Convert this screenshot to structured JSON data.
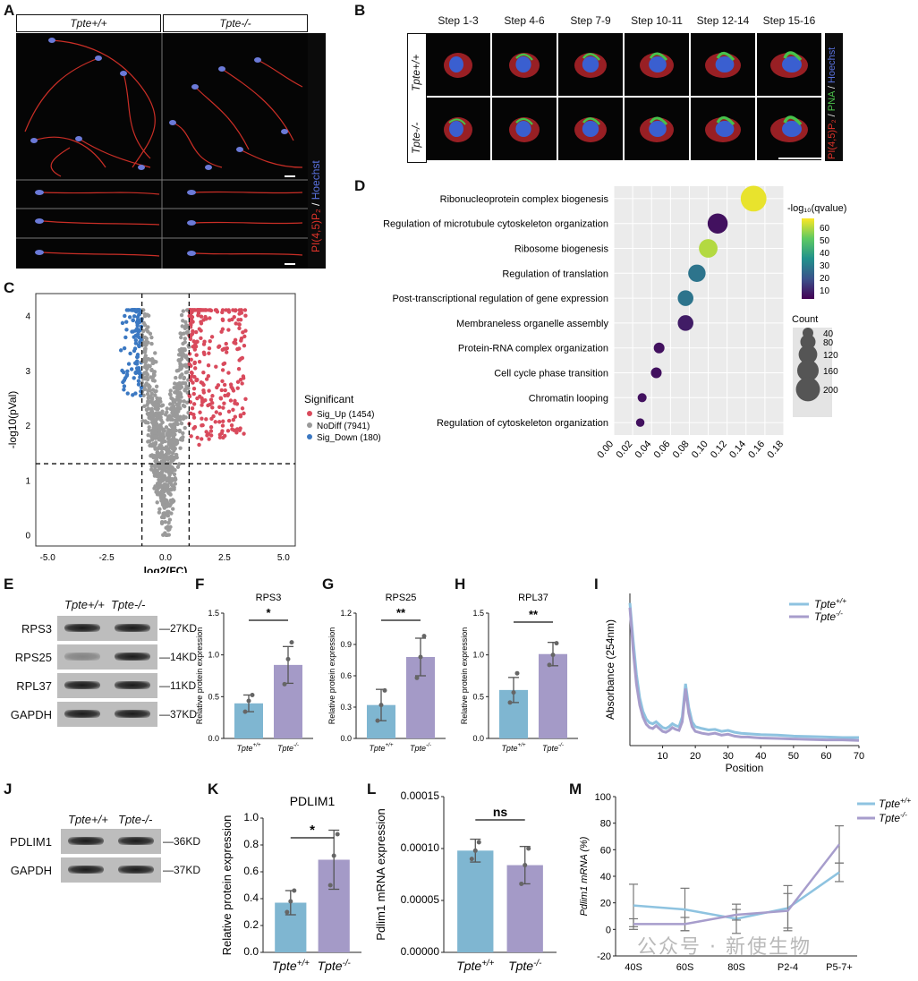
{
  "panels": {
    "A": "A",
    "B": "B",
    "C": "C",
    "D": "D",
    "E": "E",
    "F": "F",
    "G": "G",
    "H": "H",
    "I": "I",
    "J": "J",
    "K": "K",
    "L": "L",
    "M": "M"
  },
  "genotypes": {
    "wt": "Tpte+/+",
    "ko": "Tpte-/-"
  },
  "panelA": {
    "stain_red": "PI(4,5)P₂",
    "stain_sep": " / ",
    "stain_blue": "Hoechst"
  },
  "panelB": {
    "steps": [
      "Step 1-3",
      "Step 4-6",
      "Step 7-9",
      "Step 10-11",
      "Step 12-14",
      "Step 15-16"
    ],
    "stain_red": "PI(4,5)P₂",
    "stain_sep1": " / ",
    "stain_green": "PNA",
    "stain_sep2": " / ",
    "stain_blue": "Hoechst"
  },
  "colors": {
    "up": "#d94a5c",
    "nodiff": "#9a9a9a",
    "down": "#3b78c2",
    "wt_bar": "#7fb6d1",
    "ko_bar": "#a49ac7",
    "wt_line": "#8ec3e0",
    "ko_line": "#a79dcc"
  },
  "panelE": {
    "proteins": [
      "RPS3",
      "RPS25",
      "RPL37",
      "GAPDH"
    ],
    "sizes": [
      "27KD",
      "14KD",
      "11KD",
      "37KD"
    ]
  },
  "panelJ": {
    "proteins": [
      "PDLIM1",
      "GAPDH"
    ],
    "sizes": [
      "36KD",
      "37KD"
    ]
  },
  "watermark": "公众号 · 新使生物",
  "chart_data": [
    {
      "id": "C",
      "type": "scatter",
      "xlabel": "log2(FC)",
      "ylabel": "-log10(pVal)",
      "xlim": [
        -5.5,
        5.5
      ],
      "ylim": [
        -0.2,
        4.4
      ],
      "xticks": [
        "-5.0",
        "-2.5",
        "0.0",
        "2.5",
        "5.0"
      ],
      "yticks": [
        "0",
        "1",
        "2",
        "3",
        "4"
      ],
      "thresholds": {
        "x": [
          -1,
          1
        ],
        "y": 1.3
      },
      "legend_title": "Significant",
      "legend": [
        "Sig_Up (1454)",
        "NoDiff (7941)",
        "Sig_Down (180)"
      ]
    },
    {
      "id": "D",
      "type": "scatter",
      "title": "",
      "xlim": [
        0,
        0.18
      ],
      "xticks": [
        "0.00",
        "0.02",
        "0.04",
        "0.06",
        "0.08",
        "0.10",
        "0.12",
        "0.14",
        "0.16",
        "0.18"
      ],
      "terms": [
        "Ribonucleoprotein complex biogenesis",
        "Regulation of microtubule cytoskeleton organization",
        "Ribosome biogenesis",
        "Regulation of translation",
        "Post-transcriptional regulation of gene expression",
        "Membraneless organelle assembly",
        "Protein-RNA complex organization",
        "Cell cycle phase transition",
        "Chromatin looping",
        "Regulation of cytoskeleton organization"
      ],
      "x": [
        0.148,
        0.11,
        0.1,
        0.088,
        0.076,
        0.076,
        0.048,
        0.045,
        0.03,
        0.028
      ],
      "qvalue": [
        63,
        8,
        58,
        28,
        28,
        10,
        8,
        8,
        8,
        8
      ],
      "count": [
        230,
        140,
        120,
        105,
        85,
        85,
        40,
        40,
        28,
        25
      ],
      "colorbar_title": "-log₁₀(qvalue)",
      "colorbar_ticks": [
        "60",
        "50",
        "40",
        "30",
        "20",
        "10"
      ],
      "size_title": "Count",
      "size_ticks": [
        "40",
        "80",
        "120",
        "160",
        "200"
      ]
    },
    {
      "id": "F",
      "type": "bar",
      "title": "RPS3",
      "ylabel": "Relative protein expression",
      "categories": [
        "Tpte+/+",
        "Tpte-/-"
      ],
      "values": [
        0.42,
        0.88
      ],
      "errors": [
        0.1,
        0.22
      ],
      "points": [
        [
          0.32,
          0.45,
          0.52
        ],
        [
          0.65,
          0.95,
          1.15
        ]
      ],
      "ylim": [
        0,
        1.5
      ],
      "yticks": [
        "0.0",
        "0.5",
        "1.0",
        "1.5"
      ],
      "sig": "*"
    },
    {
      "id": "G",
      "type": "bar",
      "title": "RPS25",
      "ylabel": "Relative protein expression",
      "categories": [
        "Tpte+/+",
        "Tpte-/-"
      ],
      "values": [
        0.32,
        0.78
      ],
      "errors": [
        0.15,
        0.18
      ],
      "points": [
        [
          0.17,
          0.32,
          0.46
        ],
        [
          0.58,
          0.78,
          0.98
        ]
      ],
      "ylim": [
        0,
        1.2
      ],
      "yticks": [
        "0.0",
        "0.3",
        "0.6",
        "0.9",
        "1.2"
      ],
      "sig": "**"
    },
    {
      "id": "H",
      "type": "bar",
      "title": "RPL37",
      "ylabel": "Relative protein expression",
      "categories": [
        "Tpte+/+",
        "Tpte-/-"
      ],
      "values": [
        0.58,
        1.01
      ],
      "errors": [
        0.15,
        0.14
      ],
      "points": [
        [
          0.43,
          0.55,
          0.78
        ],
        [
          0.88,
          1.0,
          1.14
        ]
      ],
      "ylim": [
        0,
        1.5
      ],
      "yticks": [
        "0.0",
        "0.5",
        "1.0",
        "1.5"
      ],
      "sig": "**"
    },
    {
      "id": "I",
      "type": "line",
      "ylabel": "Absorbance (254nm)",
      "xlabel": "Position",
      "xlim": [
        0,
        70
      ],
      "xticks": [
        "10",
        "20",
        "30",
        "40",
        "50",
        "60",
        "70"
      ],
      "x": [
        0,
        1,
        2,
        3,
        4,
        5,
        6,
        7,
        8,
        9,
        10,
        11,
        12,
        13,
        14,
        15,
        16,
        17,
        18,
        19,
        20,
        22,
        24,
        26,
        28,
        30,
        32,
        34,
        36,
        38,
        40,
        45,
        50,
        55,
        60,
        65,
        70
      ],
      "series": [
        {
          "name": "Tpte+/+",
          "values": [
            3.0,
            2.2,
            1.5,
            1.0,
            0.72,
            0.56,
            0.48,
            0.46,
            0.5,
            0.44,
            0.38,
            0.36,
            0.4,
            0.46,
            0.42,
            0.4,
            0.6,
            1.3,
            0.8,
            0.5,
            0.4,
            0.36,
            0.33,
            0.34,
            0.3,
            0.32,
            0.28,
            0.26,
            0.25,
            0.24,
            0.23,
            0.22,
            0.2,
            0.19,
            0.18,
            0.17,
            0.17
          ]
        },
        {
          "name": "Tpte-/-",
          "values": [
            2.9,
            2.0,
            1.3,
            0.85,
            0.6,
            0.45,
            0.38,
            0.36,
            0.42,
            0.36,
            0.3,
            0.28,
            0.32,
            0.38,
            0.34,
            0.32,
            0.5,
            1.2,
            0.68,
            0.4,
            0.3,
            0.26,
            0.24,
            0.26,
            0.22,
            0.24,
            0.2,
            0.18,
            0.18,
            0.17,
            0.16,
            0.15,
            0.14,
            0.13,
            0.12,
            0.12,
            0.11
          ]
        }
      ]
    },
    {
      "id": "K",
      "type": "bar",
      "title": "PDLIM1",
      "ylabel": "Relative protein expression",
      "categories": [
        "Tpte+/+",
        "Tpte-/-"
      ],
      "values": [
        0.37,
        0.69
      ],
      "errors": [
        0.09,
        0.22
      ],
      "points": [
        [
          0.3,
          0.38,
          0.46
        ],
        [
          0.5,
          0.72,
          0.88
        ]
      ],
      "ylim": [
        0,
        1.0
      ],
      "yticks": [
        "0.0",
        "0.2",
        "0.4",
        "0.6",
        "0.8",
        "1.0"
      ],
      "sig": "*"
    },
    {
      "id": "L",
      "type": "bar",
      "title": "",
      "ylabel": "Pdlim1 mRNA expression",
      "categories": [
        "Tpte+/+",
        "Tpte-/-"
      ],
      "values": [
        9.8e-05,
        8.4e-05
      ],
      "errors": [
        1.1e-05,
        1.8e-05
      ],
      "points": [
        [
          9e-05,
          9.8e-05,
          0.000106
        ],
        [
          6.6e-05,
          8.4e-05,
          0.0001
        ]
      ],
      "ylim": [
        0,
        0.00015
      ],
      "yticks": [
        "0.00000",
        "0.00005",
        "0.00010",
        "0.00015"
      ],
      "sig": "ns"
    },
    {
      "id": "M",
      "type": "line",
      "ylabel": "Pdlim1 mRNA (%)",
      "categories": [
        "40S",
        "60S",
        "80S",
        "P2-4",
        "P5-7+"
      ],
      "ylim": [
        -20,
        100
      ],
      "yticks": [
        "-20",
        "0",
        "20",
        "40",
        "60",
        "80",
        "100"
      ],
      "series": [
        {
          "name": "Tpte+/+",
          "values": [
            18,
            15,
            8,
            16,
            43
          ],
          "errors": [
            16,
            16,
            11,
            17,
            7
          ]
        },
        {
          "name": "Tpte-/-",
          "values": [
            4,
            4,
            11,
            14,
            64
          ],
          "errors": [
            4,
            5,
            4,
            13,
            14
          ]
        }
      ]
    }
  ]
}
